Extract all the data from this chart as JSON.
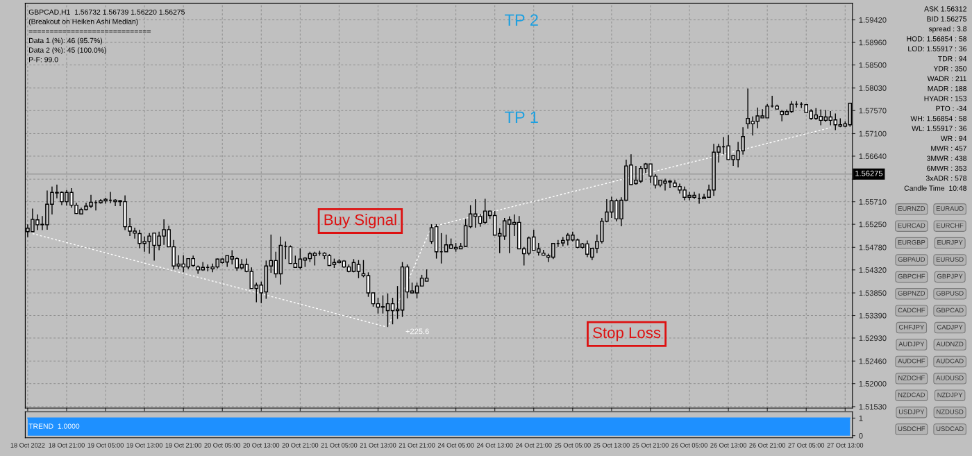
{
  "chart_data": [
    {
      "type": "candlestick",
      "color": "#000000",
      "grid": true,
      "categories": [
        "18 Oct 2022",
        null,
        null,
        null,
        null,
        null,
        null,
        null,
        "18 Oct 21:00",
        null,
        null,
        null,
        null,
        null,
        null,
        null,
        "19 Oct 05:00",
        null,
        null,
        null,
        null,
        null,
        null,
        null,
        "19 Oct 13:00",
        null,
        null,
        null,
        null,
        null,
        null,
        null,
        "19 Oct 21:00",
        null,
        null,
        null,
        null,
        null,
        null,
        null,
        "20 Oct 05:00",
        null,
        null,
        null,
        null,
        null,
        null,
        null,
        "20 Oct 13:00",
        null,
        null,
        null,
        null,
        null,
        null,
        null,
        "20 Oct 21:00",
        null,
        null,
        null,
        null,
        null,
        null,
        null,
        "21 Oct 05:00",
        null,
        null,
        null,
        null,
        null,
        null,
        null,
        "21 Oct 13:00",
        null,
        null,
        null,
        null,
        null,
        null,
        null,
        "21 Oct 21:00",
        null,
        null,
        null,
        null,
        null,
        null,
        null,
        "24 Oct 05:00",
        null,
        null,
        null,
        null,
        null,
        null,
        null,
        "24 Oct 13:00",
        null,
        null,
        null,
        null,
        null,
        null,
        null,
        "24 Oct 21:00",
        null,
        null,
        null,
        null,
        null,
        null,
        null,
        "25 Oct 05:00",
        null,
        null,
        null,
        null,
        null,
        null,
        null,
        "25 Oct 13:00",
        null,
        null,
        null,
        null,
        null,
        null,
        null,
        "25 Oct 21:00",
        null,
        null,
        null,
        null,
        null,
        null,
        null,
        "26 Oct 05:00",
        null,
        null,
        null,
        null,
        null,
        null,
        null,
        "26 Oct 13:00",
        null,
        null,
        null,
        null,
        null,
        null,
        null,
        "26 Oct 21:00",
        null,
        null,
        null,
        null,
        null,
        null,
        null,
        "27 Oct 05:00",
        null,
        null,
        null,
        null,
        null,
        null,
        null,
        "27 Oct 13:00",
        null
      ],
      "ohlc": [
        [
          1.551,
          1.5525,
          1.5499,
          1.5517
        ],
        [
          1.551,
          1.5557,
          1.551,
          1.5535
        ],
        [
          1.5534,
          1.5545,
          1.5513,
          1.5524
        ],
        [
          1.5524,
          1.5542,
          1.5513,
          1.5525
        ],
        [
          1.5524,
          1.5594,
          1.5514,
          1.5566
        ],
        [
          1.5566,
          1.5602,
          1.5545,
          1.559
        ],
        [
          1.559,
          1.5606,
          1.5578,
          1.5589
        ],
        [
          1.559,
          1.5592,
          1.5564,
          1.5571
        ],
        [
          1.5571,
          1.5595,
          1.5563,
          1.559
        ],
        [
          1.559,
          1.5599,
          1.5559,
          1.5564
        ],
        [
          1.5564,
          1.5569,
          1.5546,
          1.5547
        ],
        [
          1.5546,
          1.5559,
          1.5545,
          1.5555
        ],
        [
          1.5555,
          1.5569,
          1.5553,
          1.5562
        ],
        [
          1.5562,
          1.5585,
          1.5558,
          1.557
        ],
        [
          1.5569,
          1.5574,
          1.5553,
          1.5569
        ],
        [
          1.5569,
          1.5576,
          1.5567,
          1.5573
        ],
        [
          1.5573,
          1.5579,
          1.5567,
          1.5576
        ],
        [
          1.5574,
          1.5591,
          1.5568,
          1.5574
        ],
        [
          1.5574,
          1.5576,
          1.5562,
          1.5571
        ],
        [
          1.5571,
          1.5574,
          1.5562,
          1.5573
        ],
        [
          1.5571,
          1.5584,
          1.5513,
          1.552
        ],
        [
          1.552,
          1.5538,
          1.5501,
          1.5511
        ],
        [
          1.5511,
          1.5518,
          1.5496,
          1.5507
        ],
        [
          1.5506,
          1.5514,
          1.5476,
          1.5486
        ],
        [
          1.5486,
          1.55,
          1.5469,
          1.549
        ],
        [
          1.549,
          1.5507,
          1.5465,
          1.5501
        ],
        [
          1.5507,
          1.5507,
          1.5451,
          1.5482
        ],
        [
          1.5482,
          1.551,
          1.5472,
          1.5501
        ],
        [
          1.5501,
          1.5535,
          1.5483,
          1.5514
        ],
        [
          1.5514,
          1.5522,
          1.5479,
          1.5479
        ],
        [
          1.5479,
          1.5493,
          1.5433,
          1.544
        ],
        [
          1.544,
          1.5462,
          1.5434,
          1.5444
        ],
        [
          1.5444,
          1.5462,
          1.5427,
          1.5438
        ],
        [
          1.5438,
          1.5455,
          1.5434,
          1.5455
        ],
        [
          1.5455,
          1.5461,
          1.5438,
          1.5441
        ],
        [
          1.5438,
          1.5441,
          1.5424,
          1.5432
        ],
        [
          1.5432,
          1.5448,
          1.543,
          1.5437
        ],
        [
          1.5437,
          1.5443,
          1.5429,
          1.5437
        ],
        [
          1.5434,
          1.5445,
          1.5427,
          1.5438
        ],
        [
          1.5438,
          1.5455,
          1.5435,
          1.5454
        ],
        [
          1.5447,
          1.5455,
          1.5445,
          1.5454
        ],
        [
          1.5448,
          1.5461,
          1.5438,
          1.5461
        ],
        [
          1.5454,
          1.5472,
          1.5443,
          1.5459
        ],
        [
          1.5455,
          1.5458,
          1.543,
          1.5436
        ],
        [
          1.5436,
          1.5454,
          1.5433,
          1.5443
        ],
        [
          1.5443,
          1.5455,
          1.5427,
          1.5429
        ],
        [
          1.5429,
          1.5437,
          1.5394,
          1.5394
        ],
        [
          1.5394,
          1.5406,
          1.5366,
          1.5401
        ],
        [
          1.5401,
          1.5408,
          1.5364,
          1.5385
        ],
        [
          1.5387,
          1.5451,
          1.5373,
          1.544
        ],
        [
          1.544,
          1.5504,
          1.5426,
          1.5451
        ],
        [
          1.5451,
          1.5469,
          1.5416,
          1.5424
        ],
        [
          1.5424,
          1.55,
          1.5402,
          1.5482
        ],
        [
          1.548,
          1.549,
          1.5454,
          1.548
        ],
        [
          1.5479,
          1.5482,
          1.5445,
          1.5445
        ],
        [
          1.5445,
          1.5461,
          1.5437,
          1.5437
        ],
        [
          1.5437,
          1.5476,
          1.5433,
          1.5454
        ],
        [
          1.5452,
          1.5458,
          1.5438,
          1.5456
        ],
        [
          1.5455,
          1.5469,
          1.5448,
          1.5465
        ],
        [
          1.5461,
          1.5469,
          1.5441,
          1.5466
        ],
        [
          1.5466,
          1.5471,
          1.5461,
          1.5466
        ],
        [
          1.5466,
          1.5468,
          1.5454,
          1.5461
        ],
        [
          1.5461,
          1.5464,
          1.544,
          1.5441
        ],
        [
          1.5443,
          1.5455,
          1.5436,
          1.5447
        ],
        [
          1.5447,
          1.5454,
          1.5445,
          1.545
        ],
        [
          1.545,
          1.5452,
          1.5436,
          1.5438
        ],
        [
          1.5438,
          1.5443,
          1.5427,
          1.5429
        ],
        [
          1.5429,
          1.5454,
          1.5427,
          1.5447
        ],
        [
          1.5443,
          1.5452,
          1.5415,
          1.5429
        ],
        [
          1.5424,
          1.5452,
          1.5417,
          1.542
        ],
        [
          1.542,
          1.5427,
          1.5377,
          1.5385
        ],
        [
          1.5385,
          1.5385,
          1.5357,
          1.5363
        ],
        [
          1.5363,
          1.5375,
          1.5343,
          1.5356
        ],
        [
          1.5356,
          1.538,
          1.5343,
          1.5357
        ],
        [
          1.5349,
          1.5384,
          1.5315,
          1.5363
        ],
        [
          1.5363,
          1.5375,
          1.5321,
          1.5349
        ],
        [
          1.5349,
          1.5399,
          1.5332,
          1.5352
        ],
        [
          1.535,
          1.5448,
          1.5336,
          1.5438
        ],
        [
          1.5438,
          1.5443,
          1.5374,
          1.5387
        ],
        [
          1.5385,
          1.5406,
          1.5384,
          1.5389
        ],
        [
          1.5385,
          1.5406,
          1.5374,
          1.5399
        ],
        [
          1.5399,
          1.5422,
          1.5399,
          1.5415
        ],
        [
          1.5409,
          1.5433,
          1.5409,
          1.5415
        ],
        [
          1.549,
          1.5525,
          1.5485,
          1.5518
        ],
        [
          1.552,
          1.5525,
          1.5455,
          1.5469
        ],
        [
          1.5469,
          1.5507,
          1.5445,
          1.5469
        ],
        [
          1.5469,
          1.5504,
          1.5469,
          1.5483
        ],
        [
          1.5476,
          1.5496,
          1.5475,
          1.5483
        ],
        [
          1.5478,
          1.5487,
          1.5469,
          1.5475
        ],
        [
          1.5475,
          1.5487,
          1.5475,
          1.548
        ],
        [
          1.548,
          1.5536,
          1.5479,
          1.5522
        ],
        [
          1.552,
          1.5564,
          1.5517,
          1.5546
        ],
        [
          1.5541,
          1.5576,
          1.5518,
          1.5546
        ],
        [
          1.5541,
          1.5546,
          1.552,
          1.5527
        ],
        [
          1.5529,
          1.5577,
          1.5525,
          1.5552
        ],
        [
          1.5543,
          1.5553,
          1.5536,
          1.5552
        ],
        [
          1.5543,
          1.5552,
          1.5503,
          1.5503
        ],
        [
          1.5501,
          1.5517,
          1.5466,
          1.5506
        ],
        [
          1.5501,
          1.5538,
          1.5493,
          1.5532
        ],
        [
          1.5525,
          1.5541,
          1.5466,
          1.5534
        ],
        [
          1.5525,
          1.5545,
          1.5501,
          1.5529
        ],
        [
          1.5529,
          1.5542,
          1.5475,
          1.5475
        ],
        [
          1.5475,
          1.5479,
          1.5441,
          1.5465
        ],
        [
          1.5466,
          1.55,
          1.5462,
          1.5497
        ],
        [
          1.5499,
          1.5514,
          1.5472,
          1.5472
        ],
        [
          1.5468,
          1.5487,
          1.5461,
          1.5475
        ],
        [
          1.5466,
          1.5473,
          1.5461,
          1.5462
        ],
        [
          1.5461,
          1.5465,
          1.5448,
          1.5458
        ],
        [
          1.5458,
          1.5487,
          1.5454,
          1.5486
        ],
        [
          1.5486,
          1.5493,
          1.5479,
          1.5486
        ],
        [
          1.5487,
          1.5499,
          1.548,
          1.5492
        ],
        [
          1.5493,
          1.5507,
          1.5482,
          1.5503
        ],
        [
          1.5493,
          1.551,
          1.549,
          1.5503
        ],
        [
          1.5493,
          1.5496,
          1.5476,
          1.5478
        ],
        [
          1.5478,
          1.5487,
          1.5475,
          1.5485
        ],
        [
          1.5485,
          1.5492,
          1.5458,
          1.5464
        ],
        [
          1.5458,
          1.5477,
          1.5452,
          1.5476
        ],
        [
          1.5476,
          1.5504,
          1.5466,
          1.549
        ],
        [
          1.549,
          1.5538,
          1.5486,
          1.5531
        ],
        [
          1.5531,
          1.5576,
          1.5529,
          1.555
        ],
        [
          1.555,
          1.5581,
          1.5538,
          1.5573
        ],
        [
          1.5573,
          1.5577,
          1.5531,
          1.5536
        ],
        [
          1.5536,
          1.558,
          1.5521,
          1.5574
        ],
        [
          1.5574,
          1.5657,
          1.5573,
          1.5644
        ],
        [
          1.5646,
          1.5668,
          1.5605,
          1.5606
        ],
        [
          1.5608,
          1.5644,
          1.5606,
          1.5615
        ],
        [
          1.5613,
          1.5644,
          1.5609,
          1.5639
        ],
        [
          1.5639,
          1.565,
          1.563,
          1.5648
        ],
        [
          1.5648,
          1.5648,
          1.5609,
          1.5623
        ],
        [
          1.5623,
          1.5627,
          1.5598,
          1.5605
        ],
        [
          1.5605,
          1.5616,
          1.5601,
          1.5615
        ],
        [
          1.5613,
          1.5618,
          1.5594,
          1.5609
        ],
        [
          1.5611,
          1.5615,
          1.5599,
          1.5613
        ],
        [
          1.5609,
          1.5615,
          1.5601,
          1.5602
        ],
        [
          1.5602,
          1.5608,
          1.5588,
          1.5595
        ],
        [
          1.5595,
          1.5602,
          1.5574,
          1.558
        ],
        [
          1.558,
          1.5591,
          1.5574,
          1.5584
        ],
        [
          1.5584,
          1.5591,
          1.5577,
          1.558
        ],
        [
          1.5578,
          1.5588,
          1.5567,
          1.5578
        ],
        [
          1.5577,
          1.5587,
          1.5576,
          1.558
        ],
        [
          1.558,
          1.5606,
          1.558,
          1.5595
        ],
        [
          1.5595,
          1.5689,
          1.5583,
          1.5672
        ],
        [
          1.5672,
          1.5689,
          1.5651,
          1.5683
        ],
        [
          1.5683,
          1.5703,
          1.5668,
          1.5683
        ],
        [
          1.5685,
          1.5707,
          1.5657,
          1.5657
        ],
        [
          1.5657,
          1.5665,
          1.5644,
          1.5665
        ],
        [
          1.5657,
          1.5693,
          1.5641,
          1.5675
        ],
        [
          1.5675,
          1.5723,
          1.5667,
          1.5704
        ],
        [
          1.573,
          1.5802,
          1.572,
          1.5741
        ],
        [
          1.5735,
          1.5745,
          1.5706,
          1.573
        ],
        [
          1.5735,
          1.5763,
          1.5721,
          1.5746
        ],
        [
          1.5742,
          1.576,
          1.5742,
          1.5746
        ],
        [
          1.5742,
          1.577,
          1.5742,
          1.5766
        ],
        [
          1.5766,
          1.5787,
          1.5763,
          1.5766
        ],
        [
          1.5766,
          1.5769,
          1.5759,
          1.576
        ],
        [
          1.5755,
          1.5758,
          1.5735,
          1.5749
        ],
        [
          1.5749,
          1.5759,
          1.5748,
          1.5755
        ],
        [
          1.5755,
          1.5776,
          1.5752,
          1.577
        ],
        [
          1.577,
          1.5776,
          1.5763,
          1.577
        ],
        [
          1.577,
          1.5774,
          1.5762,
          1.577
        ],
        [
          1.5769,
          1.577,
          1.5753,
          1.5753
        ],
        [
          1.5756,
          1.576,
          1.5738,
          1.5741
        ],
        [
          1.5741,
          1.5762,
          1.5738,
          1.5748
        ],
        [
          1.5745,
          1.5759,
          1.5727,
          1.5737
        ],
        [
          1.5737,
          1.5758,
          1.5734,
          1.5744
        ],
        [
          1.5744,
          1.5756,
          1.5727,
          1.5737
        ],
        [
          1.5738,
          1.5751,
          1.5717,
          1.5728
        ],
        [
          1.5728,
          1.5741,
          1.5723,
          1.5725
        ],
        [
          1.5725,
          1.5735,
          1.5723,
          1.573
        ],
        [
          1.5728,
          1.5773,
          1.5724,
          1.5772
        ]
      ],
      "series": [
        {
          "type": "line",
          "color": "#ffffff",
          "line_style": "dashed",
          "values": [
            null,
            1.5506,
            null,
            null,
            null,
            null,
            null,
            null,
            null,
            null,
            null,
            null,
            null,
            null,
            null,
            null,
            null,
            null,
            null,
            null,
            null,
            null,
            null,
            null,
            null,
            null,
            null,
            null,
            null,
            null,
            null,
            null,
            null,
            null,
            null,
            null,
            null,
            null,
            null,
            null,
            null,
            null,
            null,
            null,
            null,
            null,
            null,
            null,
            null,
            null,
            null,
            null,
            null,
            null,
            null,
            null,
            null,
            null,
            null,
            null,
            null,
            null,
            null,
            null,
            null,
            null,
            null,
            null,
            null,
            null,
            null,
            null,
            null,
            null,
            1.5315,
            null,
            null,
            null,
            null,
            null,
            null,
            null,
            null,
            1.552,
            null,
            null,
            null,
            null,
            null,
            null,
            null,
            null,
            null,
            null,
            null,
            null,
            null,
            null,
            null,
            null,
            null,
            null,
            null,
            null,
            null,
            null,
            null,
            null,
            null,
            null,
            null,
            null,
            null,
            null,
            null,
            null,
            null,
            null,
            null,
            null,
            null,
            null,
            null,
            null,
            null,
            null,
            null,
            null,
            null,
            null,
            null,
            null,
            null,
            null,
            null,
            null,
            null,
            null,
            null,
            null,
            null,
            null,
            null,
            null,
            null,
            null,
            null,
            null,
            null,
            null,
            null,
            null,
            null,
            null,
            null,
            null,
            null,
            null,
            null,
            null,
            null,
            null,
            null,
            null,
            null,
            1.5722,
            null,
            null,
            null,
            null
          ]
        }
      ],
      "ylim": [
        1.515,
        1.5976
      ],
      "yticks": [
        {
          "value": 1.5942,
          "label": "1.59420"
        },
        {
          "value": 1.5896,
          "label": "1.58960"
        },
        {
          "value": 1.585,
          "label": "1.58500"
        },
        {
          "value": 1.5803,
          "label": "1.58030"
        },
        {
          "value": 1.5757,
          "label": "1.57570"
        },
        {
          "value": 1.571,
          "label": "1.57100"
        },
        {
          "value": 1.5664,
          "label": "1.56640"
        },
        {
          "value": 1.5617,
          "label": null
        },
        {
          "value": 1.5571,
          "label": "1.55710"
        },
        {
          "value": 1.5525,
          "label": "1.55250"
        },
        {
          "value": 1.5478,
          "label": "1.54780"
        },
        {
          "value": 1.5432,
          "label": "1.54320"
        },
        {
          "value": 1.5385,
          "label": "1.53850"
        },
        {
          "value": 1.5339,
          "label": "1.53390"
        },
        {
          "value": 1.5293,
          "label": "1.52930"
        },
        {
          "value": 1.5246,
          "label": "1.52460"
        },
        {
          "value": 1.52,
          "label": "1.52000"
        },
        {
          "value": 1.5153,
          "label": "1.51530"
        }
      ],
      "ref_lines": [
        {
          "axis": "y",
          "value": 1.56275,
          "label": "1.56275",
          "color": "#9a9a9a"
        }
      ],
      "annotations": [
        "GBPCAD,H1  1.56732 1.56739 1.56220 1.56275",
        "(Breakout on Heiken Ashi Median)",
        "=============================",
        "Data 1 (%): 46 (95.7%)",
        "Data 2 (%): 45 (100.0%)",
        "P-F: 99.0",
        "TP 2",
        "TP 1",
        "Buy Signal",
        "Stop Loss",
        "+225.6"
      ]
    },
    {
      "type": "area",
      "color": "#1e90ff",
      "tick_labels": "y",
      "categories": [
        null,
        null,
        null,
        null,
        null,
        null,
        null,
        null,
        null,
        null,
        null,
        null,
        null,
        null,
        null,
        null,
        null,
        null,
        null,
        null,
        null,
        null,
        null,
        null,
        null,
        null,
        null,
        null,
        null,
        null,
        null,
        null,
        null,
        null,
        null,
        null,
        null,
        null,
        null,
        null,
        null,
        null,
        null,
        null,
        null,
        null,
        null,
        null,
        null,
        null,
        null,
        null,
        null,
        null,
        null,
        null,
        null,
        null,
        null,
        null,
        null,
        null,
        null,
        null,
        null,
        null,
        null,
        null,
        null,
        null,
        null,
        null,
        null,
        null,
        null,
        null,
        null,
        null,
        null,
        null,
        null,
        null,
        null,
        null,
        null,
        null,
        null,
        null,
        null,
        null,
        null,
        null,
        null,
        null,
        null,
        null,
        null,
        null,
        null,
        null,
        null,
        null,
        null,
        null,
        null,
        null,
        null,
        null,
        null,
        null,
        null,
        null,
        null,
        null,
        null,
        null,
        null,
        null,
        null,
        null,
        null,
        null,
        null,
        null,
        null,
        null,
        null,
        null,
        null,
        null,
        null,
        null,
        null,
        null,
        null,
        null,
        null,
        null,
        null,
        null,
        null,
        null,
        null,
        null,
        null,
        null,
        null,
        null,
        null,
        null,
        null,
        null,
        null,
        null,
        null,
        null,
        null,
        null,
        null,
        null,
        null,
        null,
        null,
        null,
        null,
        null,
        null,
        null,
        null,
        null
      ],
      "values": [
        1,
        1,
        1,
        1,
        1,
        1,
        1,
        1,
        1,
        1,
        1,
        1,
        1,
        1,
        1,
        1,
        1,
        1,
        1,
        1,
        1,
        1,
        1,
        1,
        1,
        1,
        1,
        1,
        1,
        1,
        1,
        1,
        1,
        1,
        1,
        1,
        1,
        1,
        1,
        1,
        1,
        1,
        1,
        1,
        1,
        1,
        1,
        1,
        1,
        1,
        1,
        1,
        1,
        1,
        1,
        1,
        1,
        1,
        1,
        1,
        1,
        1,
        1,
        1,
        1,
        1,
        1,
        1,
        1,
        1,
        1,
        1,
        1,
        1,
        1,
        1,
        1,
        1,
        1,
        1,
        1,
        1,
        1,
        1,
        1,
        1,
        1,
        1,
        1,
        1,
        1,
        1,
        1,
        1,
        1,
        1,
        1,
        1,
        1,
        1,
        1,
        1,
        1,
        1,
        1,
        1,
        1,
        1,
        1,
        1,
        1,
        1,
        1,
        1,
        1,
        1,
        1,
        1,
        1,
        1,
        1,
        1,
        1,
        1,
        1,
        1,
        1,
        1,
        1,
        1,
        1,
        1,
        1,
        1,
        1,
        1,
        1,
        1,
        1,
        1,
        1,
        1,
        1,
        1,
        1,
        1,
        1,
        1,
        1,
        1,
        1,
        1,
        1,
        1,
        1,
        1,
        1,
        1,
        1,
        1,
        1,
        1,
        1,
        1,
        1,
        1,
        1,
        1,
        1,
        1
      ],
      "ylim": [
        -0.12,
        1.36
      ],
      "yticks": [
        0,
        1
      ],
      "annotations": [
        "TREND  1.0000"
      ]
    },
    {
      "type": "other",
      "annotations": [
        "ASK 1.56312",
        "BID 1.56275",
        "spread : 3.8",
        "HOD: 1.56854 : 58",
        "LOD: 1.55917 : 36",
        "TDR : 94",
        "YDR : 350",
        "WADR : 211",
        "MADR : 188",
        "HYADR : 153",
        "PTO : -34",
        "WH: 1.56854 : 58",
        "WL: 1.55917 : 36",
        "WR : 94",
        "MWR : 457",
        "3MWR : 438",
        "6MWR : 353",
        "3xADR : 578",
        "Candle Time  10:48"
      ]
    },
    {
      "type": "other",
      "annotations": [
        "EURNZD",
        "EURAUD",
        "EURCAD",
        "EURCHF",
        "EURGBP",
        "EURJPY",
        "GBPAUD",
        "EURUSD",
        "GBPCHF",
        "GBPJPY",
        "GBPNZD",
        "GBPUSD",
        "CADCHF",
        "GBPCAD",
        "CHFJPY",
        "CADJPY",
        "AUDJPY",
        "AUDNZD",
        "AUDCHF",
        "AUDCAD",
        "NZDCHF",
        "AUDUSD",
        "NZDCAD",
        "NZDJPY",
        "USDJPY",
        "NZDUSD",
        "USDCHF",
        "USDCAD"
      ]
    }
  ]
}
